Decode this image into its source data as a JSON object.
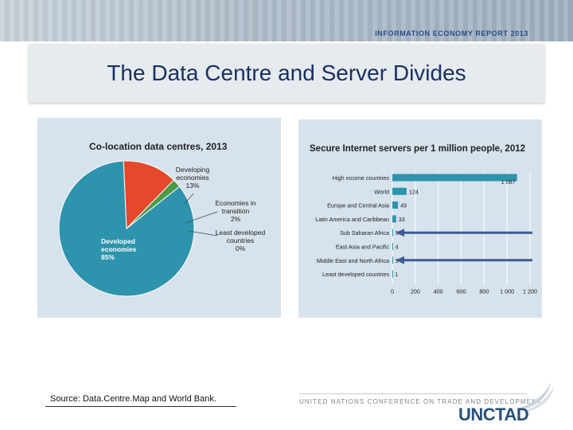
{
  "header": {
    "report_label": "INFORMATION ECONOMY REPORT 2013",
    "title": "The Data Centre and Server Divides"
  },
  "footer": {
    "source": "Source: Data.Centre.Map and World Bank.",
    "un_conference": "UNITED NATIONS CONFERENCE ON TRADE AND DEVELOPMENT",
    "logo_text": "UNCTAD"
  },
  "colors": {
    "pie_developed": "#2e93ad",
    "pie_developing": "#e5482b",
    "pie_transition": "#4a9a48",
    "bar": "#2e93ad",
    "arrow": "#3e5b97"
  },
  "chart_data": [
    {
      "type": "pie",
      "title": "Co-location data centres, 2013",
      "slices": [
        {
          "label": "Developed economies",
          "value": 85,
          "value_label": "85%"
        },
        {
          "label": "Developing economies",
          "value": 13,
          "value_label": "13%"
        },
        {
          "label": "Economies in transition",
          "value": 2,
          "value_label": "2%"
        },
        {
          "label": "Least developed countries",
          "value": 0,
          "value_label": "0%"
        }
      ]
    },
    {
      "type": "bar",
      "orientation": "horizontal",
      "title": "Secure Internet servers per 1 million people, 2012",
      "categories": [
        "High income countries",
        "World",
        "Europe and Central Asia",
        "Latin America and Caribbean",
        "Sub Saharan Africa",
        "East Asia and Pacific",
        "Middle East and North Africa",
        "Least developed countries"
      ],
      "values": [
        1087,
        124,
        49,
        33,
        5,
        4,
        3,
        1
      ],
      "value_labels": [
        "1 087",
        "124",
        "49",
        "33",
        "5",
        "4",
        "3",
        "1"
      ],
      "xlim": [
        0,
        1200
      ],
      "xticks": [
        0,
        200,
        400,
        600,
        800,
        1000,
        1200
      ],
      "xtick_labels": [
        "0",
        "200",
        "400",
        "600",
        "800",
        "1 000",
        "1 200"
      ],
      "arrows_on": [
        "Sub Saharan Africa",
        "Middle East and North Africa"
      ]
    }
  ]
}
